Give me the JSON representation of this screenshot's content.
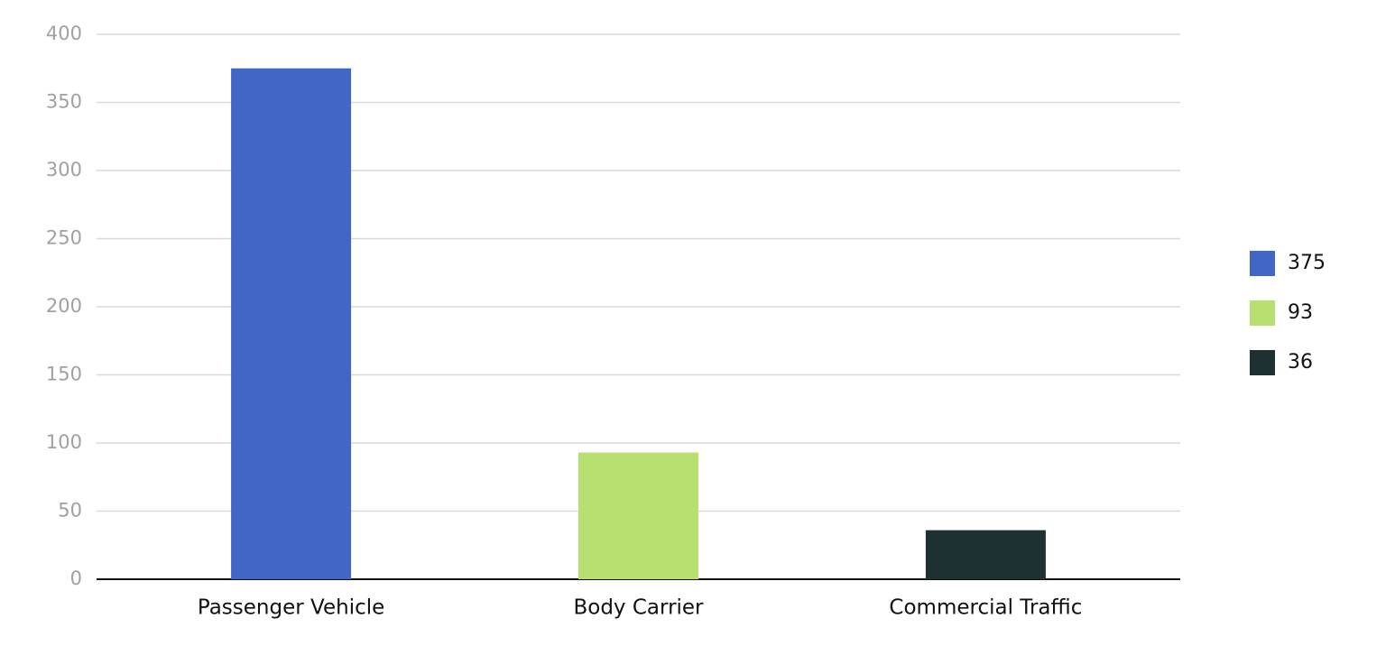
{
  "chart_data": {
    "type": "bar",
    "categories": [
      "Passenger Vehicle",
      "Body Carrier",
      "Commercial Traffic"
    ],
    "values": [
      375,
      93,
      36
    ],
    "colors": [
      "#4166c5",
      "#b8e070",
      "#1f3033"
    ],
    "ylim": [
      0,
      400
    ],
    "yticks": [
      0,
      50,
      100,
      150,
      200,
      250,
      300,
      350,
      400
    ],
    "grid": true,
    "legend": "right"
  }
}
